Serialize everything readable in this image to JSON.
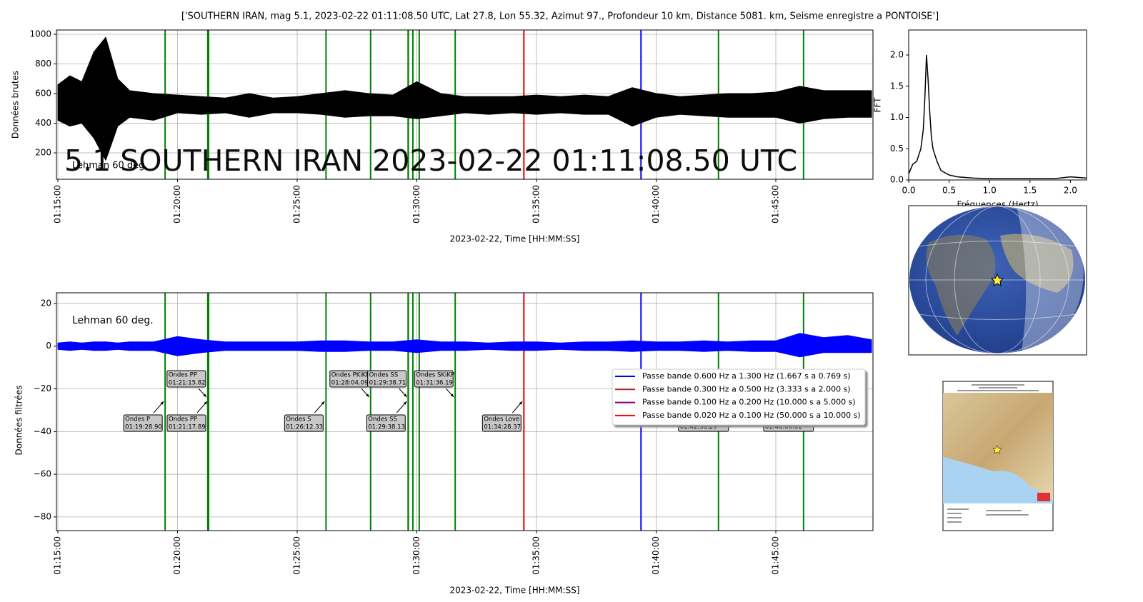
{
  "title": "['SOUTHERN IRAN, mag 5.1, 2023-02-22 01:11:08.50 UTC, Lat 27.8, Lon 55.32, Azimut 97., Profondeur 10 km, Distance 5081. km, Seisme enregistre a PONTOISE']",
  "overlay": "5.1 SOUTHERN IRAN 2023-02-22 01:11:08.50 UTC",
  "phases": [
    {
      "name": "Ondes P",
      "time": "01:19:28.90",
      "color": "#008000"
    },
    {
      "name": "Ondes PP",
      "time": "01:21:15.82",
      "color": "#008000"
    },
    {
      "name": "Ondes PP",
      "time": "01:21:17.89",
      "color": "#008000"
    },
    {
      "name": "Ondes S",
      "time": "01:26:12.33",
      "color": "#008000"
    },
    {
      "name": "Ondes PKiKP",
      "time": "01:28:04.09",
      "color": "#008000"
    },
    {
      "name": "Ondes SS",
      "time": "01:29:38.71",
      "color": "#008000"
    },
    {
      "name": "Ondes SS",
      "time": "01:29:38.13",
      "color": "#008000"
    },
    {
      "time": "01:29:50",
      "color": "#008000"
    },
    {
      "time": "01:30:06",
      "color": "#008000"
    },
    {
      "name": "Ondes SKiKP",
      "time": "01:31:36.19",
      "color": "#008000"
    },
    {
      "name": "Ondes Love",
      "time": "01:34:28.37",
      "color": "#e00000"
    },
    {
      "time": "01:39:22",
      "color": "#0000ff"
    },
    {
      "time": "01:42:36.29",
      "color": "#008000"
    },
    {
      "time": "01:46:09.61",
      "color": "#008000"
    }
  ],
  "chart_data": [
    {
      "type": "area",
      "ylabel": "Données brutes",
      "xlabel": "2023-02-22, Time [HH:MM:SS]",
      "note": "Lehman 60 deg.",
      "note_color": "#f08080",
      "xlim": [
        "01:14:56.4",
        "01:49:03.6"
      ],
      "xticks": [
        "01:15:00",
        "01:20:00",
        "01:25:00",
        "01:30:00",
        "01:35:00",
        "01:40:00",
        "01:45:00"
      ],
      "ylim": [
        22,
        1029
      ],
      "yticks": [
        200,
        400,
        600,
        800,
        1000
      ],
      "grid": true,
      "x": [
        "01:15:00",
        "01:15:30",
        "01:16:00",
        "01:16:30",
        "01:17:00",
        "01:17:30",
        "01:18:00",
        "01:19:00",
        "01:20:00",
        "01:21:00",
        "01:22:00",
        "01:23:00",
        "01:24:00",
        "01:25:00",
        "01:26:00",
        "01:27:00",
        "01:28:00",
        "01:29:00",
        "01:30:00",
        "01:31:00",
        "01:32:00",
        "01:33:00",
        "01:34:00",
        "01:35:00",
        "01:36:00",
        "01:37:00",
        "01:38:00",
        "01:39:00",
        "01:40:00",
        "01:41:00",
        "01:42:00",
        "01:43:00",
        "01:44:00",
        "01:45:00",
        "01:46:00",
        "01:47:00",
        "01:48:00",
        "01:49:00"
      ],
      "series": [
        {
          "color": "#000000",
          "upper": [
            660,
            720,
            680,
            880,
            980,
            700,
            620,
            600,
            590,
            580,
            570,
            600,
            570,
            580,
            600,
            620,
            600,
            590,
            680,
            600,
            580,
            580,
            580,
            590,
            580,
            590,
            580,
            640,
            600,
            580,
            590,
            600,
            600,
            610,
            650,
            620,
            620,
            620
          ],
          "lower": [
            420,
            380,
            400,
            300,
            150,
            380,
            440,
            420,
            470,
            460,
            470,
            440,
            470,
            470,
            460,
            440,
            450,
            450,
            430,
            450,
            470,
            460,
            470,
            460,
            470,
            460,
            460,
            380,
            440,
            460,
            450,
            440,
            440,
            440,
            400,
            430,
            440,
            440
          ]
        }
      ]
    },
    {
      "type": "area",
      "ylabel": "Données filtrées",
      "xlabel": "2023-02-22, Time [HH:MM:SS]",
      "note": "Lehman 60 deg.",
      "note_color": "#800080",
      "xlim": [
        "01:14:56.4",
        "01:49:03.6"
      ],
      "xticks": [
        "01:15:00",
        "01:20:00",
        "01:25:00",
        "01:30:00",
        "01:35:00",
        "01:40:00",
        "01:45:00"
      ],
      "ylim": [
        -86.4,
        25
      ],
      "yticks": [
        20,
        0,
        {
          "value": -20,
          "label": "−20"
        },
        {
          "value": -40,
          "label": "−40"
        },
        {
          "value": -60,
          "label": "−60"
        },
        {
          "value": -80,
          "label": "−80"
        }
      ],
      "grid": true,
      "x": [
        "01:15:00",
        "01:15:30",
        "01:16:00",
        "01:16:30",
        "01:17:00",
        "01:17:30",
        "01:18:00",
        "01:19:00",
        "01:20:00",
        "01:21:00",
        "01:22:00",
        "01:23:00",
        "01:24:00",
        "01:25:00",
        "01:26:00",
        "01:27:00",
        "01:28:00",
        "01:29:00",
        "01:30:00",
        "01:31:00",
        "01:32:00",
        "01:33:00",
        "01:34:00",
        "01:35:00",
        "01:36:00",
        "01:37:00",
        "01:38:00",
        "01:39:00",
        "01:40:00",
        "01:41:00",
        "01:42:00",
        "01:43:00",
        "01:44:00",
        "01:45:00",
        "01:46:00",
        "01:47:00",
        "01:48:00",
        "01:49:00"
      ],
      "series": [
        {
          "color": "#0000ff",
          "upper": [
            1.5,
            2,
            1.5,
            2,
            2,
            1.5,
            2,
            2,
            4.5,
            3,
            2,
            2,
            2,
            2,
            2.5,
            2.5,
            2,
            2,
            3,
            2,
            2,
            1.5,
            2,
            2,
            1.5,
            2,
            2,
            2.5,
            2,
            2,
            2.5,
            2,
            2.5,
            2.5,
            6,
            4,
            5,
            3
          ],
          "lower": [
            -1.5,
            -2,
            -1.5,
            -2,
            -2,
            -1.5,
            -2,
            -2,
            -4.5,
            -3,
            -2,
            -2,
            -2,
            -2,
            -2.5,
            -2.5,
            -2,
            -2,
            -3,
            -2,
            -2,
            -1.5,
            -2,
            -2,
            -1.5,
            -2,
            -2,
            -2.5,
            -2,
            -2,
            -2.5,
            -2,
            -2.5,
            -2.5,
            -5,
            -3,
            -3,
            -3
          ]
        }
      ],
      "legend": "center right",
      "legend_entries": [
        {
          "name": "Passe bande 0.600 Hz a 1.300 Hz (1.667 s a 0.769 s)",
          "color": "#0000ff"
        },
        {
          "name": "Passe bande 0.300 Hz a 0.500 Hz (3.333 s a 2.000 s)",
          "color": "#a52a2a"
        },
        {
          "name": "Passe bande 0.100 Hz a 0.200 Hz (10.000 s a 5.000 s)",
          "color": "#800080"
        },
        {
          "name": "Passe bande 0.020 Hz a 0.100 Hz (50.000 s a 10.000 s)",
          "color": "#ff0000"
        }
      ]
    },
    {
      "type": "line",
      "xlabel": "Fréquences (Hertz)",
      "ylabel": "FFT",
      "xlim": [
        0,
        2.2
      ],
      "xticks": [
        {
          "value": 0,
          "label": "0.0"
        },
        0.5,
        {
          "value": 1,
          "label": "1.0"
        },
        1.5,
        {
          "value": 2,
          "label": "2.0"
        }
      ],
      "ylim": [
        0,
        2.4
      ],
      "yticks": [
        {
          "value": 0,
          "label": "0.0"
        },
        0.5,
        {
          "value": 1,
          "label": "1.0"
        },
        1.5,
        {
          "value": 2,
          "label": "2.0"
        }
      ],
      "grid": false,
      "x": [
        0,
        0.05,
        0.1,
        0.15,
        0.18,
        0.2,
        0.22,
        0.24,
        0.26,
        0.28,
        0.3,
        0.35,
        0.4,
        0.5,
        0.6,
        0.8,
        1.0,
        1.2,
        1.5,
        1.8,
        2.0,
        2.2
      ],
      "series": [
        {
          "color": "#000000",
          "values": [
            0.1,
            0.25,
            0.3,
            0.5,
            0.8,
            1.3,
            2.0,
            1.6,
            1.1,
            0.7,
            0.5,
            0.3,
            0.15,
            0.08,
            0.05,
            0.03,
            0.02,
            0.02,
            0.02,
            0.02,
            0.05,
            0.03
          ]
        }
      ]
    }
  ]
}
